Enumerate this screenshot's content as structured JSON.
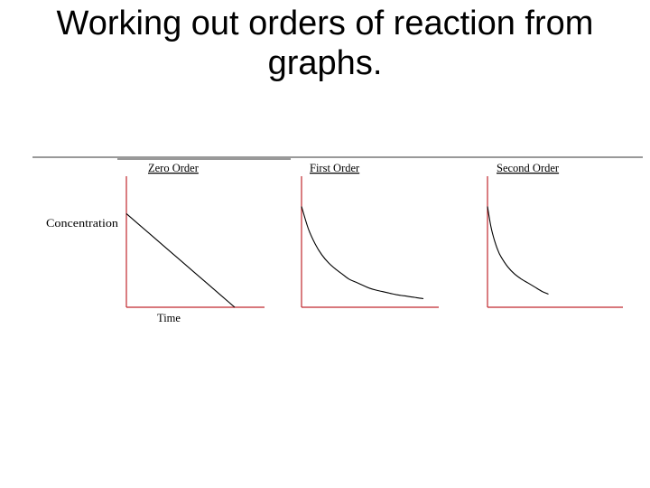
{
  "slide": {
    "title_line1": "Working out orders of reaction from",
    "title_line2": "graphs."
  },
  "colors": {
    "axis": "#c0272d",
    "curve": "#000000",
    "rule": "#333333"
  },
  "shared_labels": {
    "ylabel": "Concentration",
    "xlabel": "Time"
  },
  "chart_data": [
    {
      "type": "line",
      "title": "Zero Order",
      "xlabel": "Time",
      "ylabel": "Concentration",
      "order": 0,
      "x": [
        0,
        1,
        2,
        3,
        4,
        5,
        6,
        7,
        8
      ],
      "values": [
        1.0,
        0.875,
        0.75,
        0.625,
        0.5,
        0.375,
        0.25,
        0.125,
        0.0
      ],
      "xlim": [
        0,
        10
      ],
      "ylim": [
        0,
        1.4
      ]
    },
    {
      "type": "line",
      "title": "First Order",
      "xlabel": "",
      "ylabel": "",
      "order": 1,
      "x": [
        0,
        0.5,
        1,
        1.5,
        2,
        2.5,
        3,
        3.5,
        4,
        4.5,
        5,
        5.5,
        6,
        6.5,
        7,
        7.5,
        8,
        8.5,
        9
      ],
      "values": [
        1.0,
        0.78,
        0.63,
        0.52,
        0.44,
        0.38,
        0.33,
        0.28,
        0.25,
        0.22,
        0.19,
        0.17,
        0.155,
        0.14,
        0.125,
        0.115,
        0.105,
        0.095,
        0.085
      ],
      "xlim": [
        0,
        10
      ],
      "ylim": [
        0,
        1.3
      ]
    },
    {
      "type": "line",
      "title": "Second Order",
      "xlabel": "",
      "ylabel": "",
      "order": 2,
      "x": [
        0,
        0.25,
        0.5,
        0.75,
        1,
        1.5,
        2,
        2.5,
        3,
        3.5,
        4,
        4.5
      ],
      "values": [
        1.0,
        0.8,
        0.67,
        0.57,
        0.5,
        0.4,
        0.33,
        0.28,
        0.24,
        0.2,
        0.16,
        0.13
      ],
      "xlim": [
        0,
        10
      ],
      "ylim": [
        0,
        1.3
      ]
    }
  ]
}
